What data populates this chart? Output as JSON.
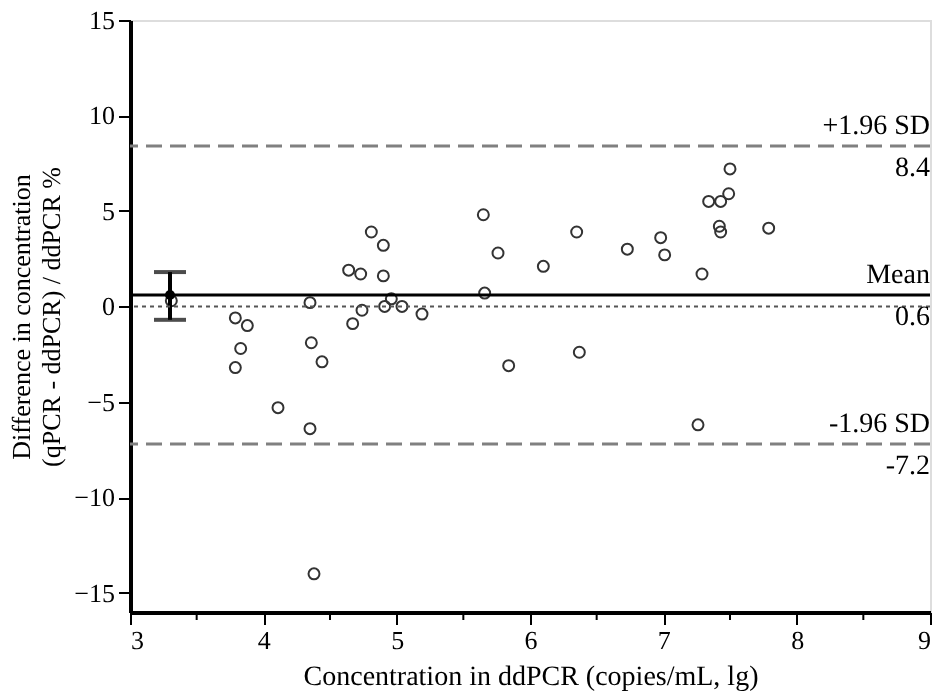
{
  "chart_data": {
    "type": "scatter",
    "xlabel": "Concentration in ddPCR (copies/mL, lg)",
    "ylabel": "Difference in concentration\n(qPCR - ddPCR) / ddPCR %",
    "xlim": [
      3,
      9
    ],
    "ylim": [
      -16,
      15
    ],
    "xticks": [
      3,
      {
        "value": 3.5,
        "label": null
      },
      4,
      {
        "value": 4.5,
        "label": null
      },
      5,
      {
        "value": 5.5,
        "label": null
      },
      6,
      {
        "value": 6.5,
        "label": null
      },
      7,
      {
        "value": 7.5,
        "label": null
      },
      8,
      {
        "value": 8.5,
        "label": null
      },
      9
    ],
    "annotations": [
      {
        "text": "8.4",
        "y": 8.4
      },
      {
        "text": "0.6",
        "y": 0.6
      },
      {
        "text": "-7.2",
        "y": -7.2
      }
    ],
    "yticks": [
      -15,
      -10,
      -5,
      0,
      5,
      10,
      15
    ],
    "grid": false,
    "marker": "circle",
    "series": [
      {
        "color": "#333333",
        "x": [
          3.31,
          3.79,
          3.88,
          3.83,
          3.79,
          4.11,
          4.35,
          4.36,
          4.44,
          4.35,
          4.38,
          4.64,
          4.73,
          4.67,
          4.74,
          4.81,
          4.9,
          4.9,
          4.91,
          4.96,
          5.04,
          5.19,
          5.65,
          5.66,
          5.76,
          5.84,
          6.1,
          6.35,
          6.37,
          6.73,
          6.98,
          7.01,
          7.29,
          7.26,
          7.34,
          7.43,
          7.42,
          7.43,
          7.49,
          7.5,
          7.79
        ],
        "values": [
          0.3,
          -0.6,
          -1.0,
          -2.2,
          -3.2,
          -5.3,
          0.2,
          -1.9,
          -2.9,
          -6.4,
          -14.0,
          1.9,
          1.7,
          -0.9,
          -0.2,
          3.9,
          3.2,
          1.6,
          0.0,
          0.4,
          0.0,
          -0.4,
          4.8,
          0.7,
          2.8,
          -3.1,
          2.1,
          3.9,
          -2.4,
          3.0,
          3.6,
          2.7,
          1.7,
          -6.2,
          5.5,
          5.5,
          4.2,
          3.9,
          5.9,
          7.2,
          4.1
        ]
      },
      {
        "color": "#000000",
        "type": "scatter",
        "marker": "circle",
        "x": [
          3.3
        ],
        "values": [
          0.6
        ],
        "errors": [
          [
            -0.7,
            1.8
          ]
        ]
      }
    ],
    "ref_lines": [
      {
        "axis": "y",
        "value": 8.4,
        "label": "+1.96 SD",
        "color": "#808080",
        "line_style": "dashed"
      },
      {
        "axis": "y",
        "value": 0.6,
        "label": "Mean",
        "color": "#000000",
        "line_style": "solid"
      },
      {
        "axis": "y",
        "value": -7.2,
        "label": "-1.96 SD",
        "color": "#808080",
        "line_style": "dashed"
      },
      {
        "axis": "y",
        "value": 0,
        "label": null,
        "color": "#555555",
        "line_style": "dotted"
      }
    ]
  }
}
